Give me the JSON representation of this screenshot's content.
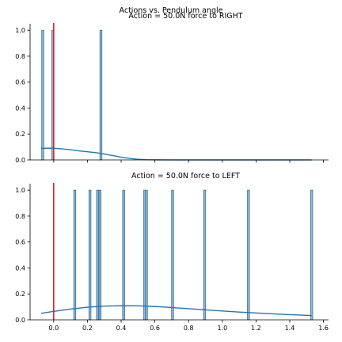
{
  "figure": {
    "suptitle": "Actions vs. Pendulum angle"
  },
  "style": {
    "bar_fill": "#8fb6d5",
    "bar_stroke": "#3a6f98",
    "kde_color": "#1f77b4",
    "vline_color": "#d62728",
    "axis_color": "#000000"
  },
  "chart_data": [
    {
      "type": "histogram",
      "title": "Action = 50.0N force to RIGHT",
      "xlabel": "",
      "ylabel": "",
      "xlim": [
        -0.14,
        1.63
      ],
      "ylim": [
        0,
        1.05
      ],
      "xticks": [
        0.0,
        0.2,
        0.4,
        0.6,
        0.8,
        1.0,
        1.2,
        1.4,
        1.6
      ],
      "xtick_labels": [],
      "yticks": [
        0.0,
        0.2,
        0.4,
        0.6,
        0.8,
        1.0
      ],
      "ytick_labels": [
        "0.0",
        "0.2",
        "0.4",
        "0.6",
        "0.8",
        "1.0"
      ],
      "bin_width": 0.012,
      "bars": [
        {
          "x": -0.065,
          "height": 1.0
        },
        {
          "x": -0.005,
          "height": 1.0
        },
        {
          "x": 0.28,
          "height": 1.0
        }
      ],
      "kde": {
        "x": [
          -0.075,
          -0.05,
          -0.02,
          0.0,
          0.05,
          0.1,
          0.15,
          0.2,
          0.25,
          0.28,
          0.32,
          0.36,
          0.4,
          0.45,
          0.5,
          0.55,
          0.6,
          0.7,
          0.8,
          1.0,
          1.2,
          1.4,
          1.53
        ],
        "y": [
          0.088,
          0.09,
          0.091,
          0.09,
          0.085,
          0.078,
          0.07,
          0.063,
          0.056,
          0.05,
          0.041,
          0.031,
          0.021,
          0.011,
          0.005,
          0.002,
          0.0008,
          0.0,
          0.0,
          0.0,
          0.0,
          0.0,
          0.0
        ]
      },
      "vline_x": 0.0
    },
    {
      "type": "histogram",
      "title": "Action = 50.0N force to LEFT",
      "xlabel": "",
      "ylabel": "",
      "xlim": [
        -0.14,
        1.63
      ],
      "ylim": [
        0,
        1.05
      ],
      "xticks": [
        0.0,
        0.2,
        0.4,
        0.6,
        0.8,
        1.0,
        1.2,
        1.4,
        1.6
      ],
      "xtick_labels": [
        "0.0",
        "0.2",
        "0.4",
        "0.6",
        "0.8",
        "1.0",
        "1.2",
        "1.4",
        "1.6"
      ],
      "yticks": [
        0.0,
        0.2,
        0.4,
        0.6,
        0.8,
        1.0
      ],
      "ytick_labels": [
        "0.0",
        "0.2",
        "0.4",
        "0.6",
        "0.8",
        "1.0"
      ],
      "bin_width": 0.012,
      "bars": [
        {
          "x": 0.125,
          "height": 1.0
        },
        {
          "x": 0.215,
          "height": 1.0
        },
        {
          "x": 0.26,
          "height": 1.0
        },
        {
          "x": 0.275,
          "height": 1.0
        },
        {
          "x": 0.415,
          "height": 1.0
        },
        {
          "x": 0.54,
          "height": 1.0
        },
        {
          "x": 0.55,
          "height": 1.0
        },
        {
          "x": 0.705,
          "height": 1.0
        },
        {
          "x": 0.895,
          "height": 1.0
        },
        {
          "x": 1.155,
          "height": 1.0
        },
        {
          "x": 1.53,
          "height": 1.0
        }
      ],
      "kde": {
        "x": [
          -0.075,
          0.0,
          0.1,
          0.2,
          0.3,
          0.4,
          0.5,
          0.6,
          0.7,
          0.8,
          0.9,
          1.0,
          1.1,
          1.2,
          1.3,
          1.4,
          1.53
        ],
        "y": [
          0.05,
          0.065,
          0.083,
          0.097,
          0.106,
          0.109,
          0.108,
          0.103,
          0.095,
          0.086,
          0.077,
          0.068,
          0.06,
          0.053,
          0.046,
          0.04,
          0.033
        ]
      },
      "vline_x": 0.0
    }
  ]
}
